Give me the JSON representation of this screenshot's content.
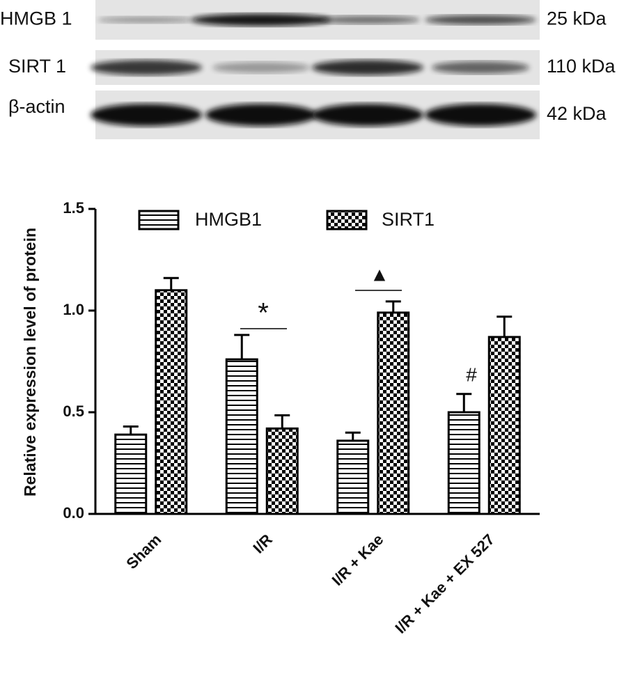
{
  "blot": {
    "rows": [
      {
        "label": "HMGB 1",
        "size": "25 kDa"
      },
      {
        "label": "SIRT 1",
        "size": "110 kDa"
      },
      {
        "label": "β-actin",
        "size": "42 kDa"
      }
    ]
  },
  "chart_data": {
    "type": "bar",
    "y_label": "Relative expression level of protein",
    "categories": [
      "Sham",
      "I/R",
      "I/R + Kae",
      "I/R + Kae + EX 527"
    ],
    "series": [
      {
        "name": "HMGB1",
        "color": "#000000",
        "pattern": "stripes",
        "values": [
          0.39,
          0.76,
          0.36,
          0.5
        ],
        "errors": [
          0.04,
          0.12,
          0.04,
          0.09
        ]
      },
      {
        "name": "SIRT1",
        "color": "#000000",
        "pattern": "checker",
        "values": [
          1.1,
          0.42,
          0.99,
          0.87
        ],
        "errors": [
          0.06,
          0.065,
          0.055,
          0.1
        ]
      }
    ],
    "ylim": [
      0,
      1.5
    ],
    "yticks": [
      {
        "value": 0,
        "label": "0.0"
      },
      {
        "value": 0.5,
        "label": "0.5"
      },
      {
        "value": 1,
        "label": "1.0"
      },
      {
        "value": 1.5,
        "label": "1.5"
      }
    ],
    "annotations": [
      "*",
      "▲",
      "#"
    ]
  }
}
